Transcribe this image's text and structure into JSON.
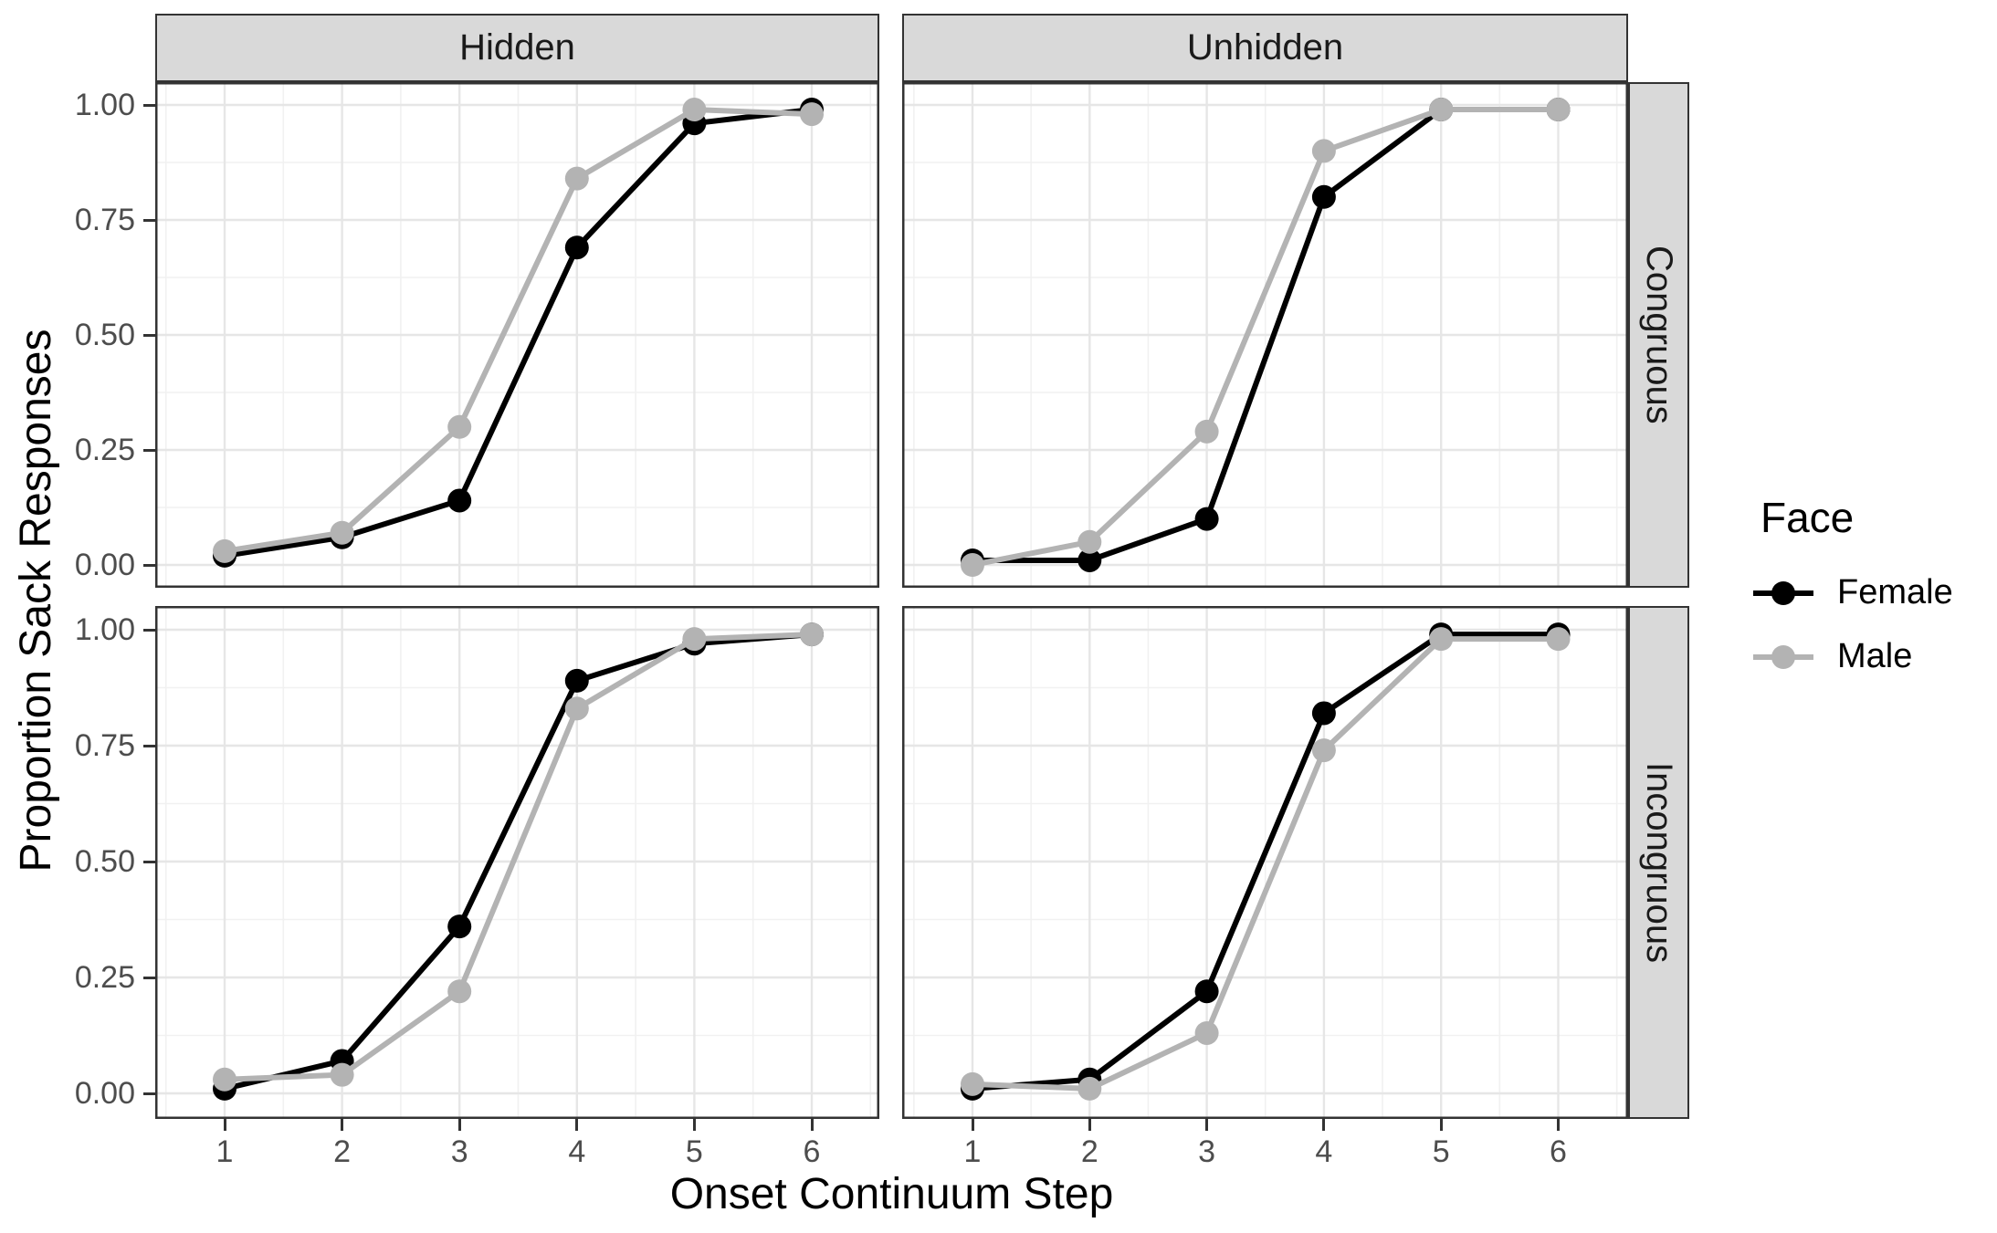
{
  "figure": {
    "background": "#ffffff",
    "x_axis_title": "Onset Continuum Step",
    "y_axis_title": "Proportion Sack Responses",
    "x_tick_labels": [
      "1",
      "2",
      "3",
      "4",
      "5",
      "6"
    ],
    "y_tick_labels": [
      "1.00",
      "0.75",
      "0.50",
      "0.25",
      "0.00"
    ],
    "colors": {
      "female": "#000000",
      "male": "#b3b3b3",
      "strip_fill": "#d9d9d9",
      "panel_border": "#333333",
      "grid_major": "#e6e6e6",
      "grid_minor": "#f1f1f1",
      "tick_mark": "#333333",
      "tick_label": "#4d4d4d"
    }
  },
  "legend": {
    "title": "Face",
    "entries": [
      {
        "label": "Female",
        "color": "#000000"
      },
      {
        "label": "Male",
        "color": "#b3b3b3"
      }
    ]
  },
  "chart_data": {
    "type": "line",
    "x": [
      1,
      2,
      3,
      4,
      5,
      6
    ],
    "xlabel": "Onset Continuum Step",
    "ylabel": "Proportion Sack Responses",
    "ylim": [
      0,
      1
    ],
    "y_major_ticks": [
      0,
      0.25,
      0.5,
      0.75,
      1.0
    ],
    "y_minor_ticks": [
      0.125,
      0.375,
      0.625,
      0.875
    ],
    "x_minor_ticks": [
      0.5,
      1.5,
      2.5,
      3.5,
      4.5,
      5.5,
      6.5
    ],
    "grid": true,
    "legend_title": "Face",
    "legend_position": "right",
    "facet_columns": [
      "Hidden",
      "Unhidden"
    ],
    "facet_rows": [
      "Congruous",
      "Incongruous"
    ],
    "panels": [
      {
        "facet_col": "Hidden",
        "facet_row": "Congruous",
        "series": [
          {
            "name": "Female",
            "values": [
              0.02,
              0.06,
              0.14,
              0.69,
              0.96,
              0.99
            ]
          },
          {
            "name": "Male",
            "values": [
              0.03,
              0.07,
              0.3,
              0.84,
              0.99,
              0.98
            ]
          }
        ]
      },
      {
        "facet_col": "Unhidden",
        "facet_row": "Congruous",
        "series": [
          {
            "name": "Female",
            "values": [
              0.01,
              0.01,
              0.1,
              0.8,
              0.99,
              0.99
            ]
          },
          {
            "name": "Male",
            "values": [
              0.0,
              0.05,
              0.29,
              0.9,
              0.99,
              0.99
            ]
          }
        ]
      },
      {
        "facet_col": "Hidden",
        "facet_row": "Incongruous",
        "series": [
          {
            "name": "Female",
            "values": [
              0.01,
              0.07,
              0.36,
              0.89,
              0.97,
              0.99
            ]
          },
          {
            "name": "Male",
            "values": [
              0.03,
              0.04,
              0.22,
              0.83,
              0.98,
              0.99
            ]
          }
        ]
      },
      {
        "facet_col": "Unhidden",
        "facet_row": "Incongruous",
        "series": [
          {
            "name": "Female",
            "values": [
              0.01,
              0.03,
              0.22,
              0.82,
              0.99,
              0.99
            ]
          },
          {
            "name": "Male",
            "values": [
              0.02,
              0.01,
              0.13,
              0.74,
              0.98,
              0.98
            ]
          }
        ]
      }
    ]
  }
}
